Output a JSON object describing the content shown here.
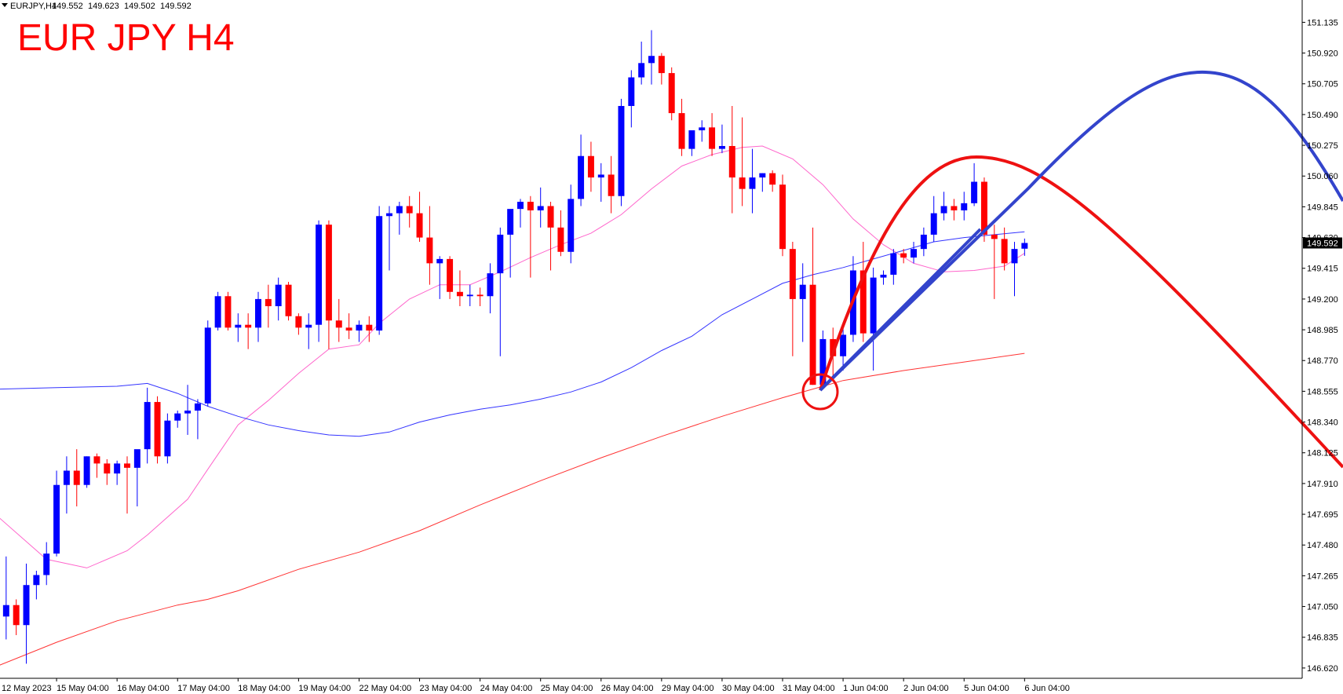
{
  "chart_data": {
    "type": "candlestick",
    "symbol": "EURJPY,H4",
    "title": "EUR JPY H4",
    "up_color": "#0000ff",
    "down_color": "#ff0000",
    "xlim": [
      0.39,
      129.53
    ],
    "ylim": [
      146.548,
      151.291
    ],
    "xticks": [
      {
        "value": 0,
        "label": "12 May 2023"
      },
      {
        "value": 6,
        "label": "15 May 04:00"
      },
      {
        "value": 12,
        "label": "16 May 04:00"
      },
      {
        "value": 18,
        "label": "17 May 04:00"
      },
      {
        "value": 24,
        "label": "18 May 04:00"
      },
      {
        "value": 30,
        "label": "19 May 04:00"
      },
      {
        "value": 36,
        "label": "22 May 04:00"
      },
      {
        "value": 42,
        "label": "23 May 04:00"
      },
      {
        "value": 48,
        "label": "24 May 04:00"
      },
      {
        "value": 54,
        "label": "25 May 04:00"
      },
      {
        "value": 60,
        "label": "26 May 04:00"
      },
      {
        "value": 66,
        "label": "29 May 04:00"
      },
      {
        "value": 72,
        "label": "30 May 04:00"
      },
      {
        "value": 78,
        "label": "31 May 04:00"
      },
      {
        "value": 84,
        "label": "1 Jun 04:00"
      },
      {
        "value": 90,
        "label": "2 Jun 04:00"
      },
      {
        "value": 96,
        "label": "5 Jun 04:00"
      },
      {
        "value": 102,
        "label": "6 Jun 04:00"
      }
    ],
    "yticks": [
      {
        "value": 151.135,
        "label": "151.135"
      },
      {
        "value": 150.92,
        "label": "150.920"
      },
      {
        "value": 150.705,
        "label": "150.705"
      },
      {
        "value": 150.49,
        "label": "150.490"
      },
      {
        "value": 150.275,
        "label": "150.275"
      },
      {
        "value": 150.06,
        "label": "150.060"
      },
      {
        "value": 149.845,
        "label": "149.845"
      },
      {
        "value": 149.63,
        "label": "149.630"
      },
      {
        "value": 149.415,
        "label": "149.415"
      },
      {
        "value": 149.2,
        "label": "149.200"
      },
      {
        "value": 148.985,
        "label": "148.985"
      },
      {
        "value": 148.77,
        "label": "148.770"
      },
      {
        "value": 148.555,
        "label": "148.555"
      },
      {
        "value": 148.34,
        "label": "148.340"
      },
      {
        "value": 148.125,
        "label": "148.125"
      },
      {
        "value": 147.91,
        "label": "147.910"
      },
      {
        "value": 147.695,
        "label": "147.695"
      },
      {
        "value": 147.48,
        "label": "147.480"
      },
      {
        "value": 147.265,
        "label": "147.265"
      },
      {
        "value": 147.05,
        "label": "147.050"
      },
      {
        "value": 146.835,
        "label": "146.835"
      },
      {
        "value": 146.62,
        "label": "146.620"
      }
    ],
    "candles": {
      "x": [
        1,
        2,
        3,
        4,
        5,
        6,
        7,
        8,
        9,
        10,
        11,
        12,
        13,
        14,
        15,
        16,
        17,
        18,
        19,
        20,
        21,
        22,
        23,
        24,
        25,
        26,
        27,
        28,
        29,
        30,
        31,
        32,
        33,
        34,
        35,
        36,
        37,
        38,
        39,
        40,
        41,
        42,
        43,
        44,
        45,
        46,
        47,
        48,
        49,
        50,
        51,
        52,
        53,
        54,
        55,
        56,
        57,
        58,
        59,
        60,
        61,
        62,
        63,
        64,
        65,
        66,
        67,
        68,
        69,
        70,
        71,
        72,
        73,
        74,
        75,
        76,
        77,
        78,
        79,
        80,
        81,
        82,
        83,
        84,
        85,
        86,
        87,
        88,
        89,
        90,
        91,
        92,
        93,
        94,
        95,
        96,
        97,
        98,
        99,
        100,
        101,
        102
      ],
      "open": [
        146.98,
        147.06,
        146.92,
        147.2,
        147.27,
        147.42,
        147.9,
        148.0,
        147.9,
        148.1,
        148.05,
        147.98,
        148.05,
        148.02,
        148.15,
        148.48,
        148.1,
        148.35,
        148.4,
        148.42,
        148.47,
        149.0,
        149.22,
        149.0,
        149.02,
        149.0,
        149.2,
        149.15,
        149.3,
        149.08,
        149.0,
        149.02,
        149.72,
        149.05,
        149.0,
        148.98,
        149.02,
        148.98,
        149.78,
        149.8,
        149.85,
        149.8,
        149.63,
        149.45,
        149.48,
        149.25,
        149.22,
        149.23,
        149.22,
        149.38,
        149.65,
        149.83,
        149.88,
        149.82,
        149.85,
        149.7,
        149.53,
        149.9,
        150.2,
        150.05,
        150.07,
        149.92,
        150.55,
        150.75,
        150.85,
        150.9,
        150.78,
        150.5,
        150.25,
        150.38,
        150.4,
        150.25,
        150.27,
        150.05,
        149.97,
        150.05,
        150.08,
        150.0,
        149.55,
        149.2,
        149.3,
        148.6,
        148.92,
        148.8,
        148.95,
        149.4,
        148.96,
        149.35,
        149.37,
        149.52,
        149.49,
        149.55,
        149.65,
        149.8,
        149.85,
        149.82,
        149.87,
        150.02,
        149.65,
        149.62,
        149.45,
        149.552
      ],
      "high": [
        147.4,
        147.1,
        147.35,
        147.3,
        147.5,
        148.0,
        148.1,
        148.15,
        148.1,
        148.12,
        148.08,
        148.07,
        148.1,
        148.1,
        148.58,
        148.52,
        148.4,
        148.42,
        148.6,
        148.5,
        149.05,
        149.25,
        149.25,
        149.1,
        149.1,
        149.25,
        149.3,
        149.35,
        149.32,
        149.1,
        149.1,
        149.75,
        149.75,
        149.2,
        149.1,
        149.05,
        149.08,
        149.85,
        149.85,
        149.88,
        149.92,
        149.95,
        149.85,
        149.5,
        149.5,
        149.4,
        149.3,
        149.28,
        149.45,
        149.7,
        149.8,
        149.9,
        149.92,
        149.98,
        149.88,
        149.82,
        150.0,
        150.35,
        150.3,
        150.15,
        150.2,
        150.6,
        150.8,
        151.0,
        151.08,
        150.92,
        150.82,
        150.6,
        150.35,
        150.45,
        150.5,
        150.42,
        150.55,
        150.47,
        150.25,
        150.08,
        150.1,
        150.07,
        149.6,
        149.45,
        149.7,
        148.98,
        149.0,
        149.0,
        149.5,
        149.6,
        149.42,
        149.4,
        149.55,
        149.55,
        149.6,
        149.7,
        149.92,
        149.95,
        149.9,
        149.95,
        150.15,
        150.05,
        149.72,
        149.7,
        149.6,
        149.623
      ],
      "low": [
        146.82,
        146.85,
        146.65,
        147.1,
        147.2,
        147.4,
        147.7,
        147.75,
        147.88,
        147.95,
        147.9,
        147.9,
        147.7,
        147.75,
        148.05,
        148.05,
        148.05,
        148.3,
        148.25,
        148.22,
        148.45,
        148.98,
        148.98,
        148.9,
        148.85,
        148.9,
        149.0,
        149.05,
        149.05,
        148.95,
        148.85,
        148.9,
        148.85,
        148.9,
        148.92,
        148.9,
        148.9,
        148.95,
        149.4,
        149.65,
        149.7,
        149.6,
        149.3,
        149.2,
        149.2,
        149.15,
        149.15,
        149.15,
        149.1,
        148.8,
        149.35,
        149.7,
        149.35,
        149.7,
        149.4,
        149.5,
        149.45,
        149.85,
        149.95,
        149.88,
        149.8,
        149.85,
        150.4,
        150.7,
        150.7,
        150.7,
        150.45,
        150.2,
        150.2,
        150.3,
        150.2,
        150.22,
        149.8,
        149.85,
        149.8,
        149.95,
        149.95,
        149.5,
        148.8,
        148.9,
        148.6,
        148.58,
        148.65,
        148.7,
        148.9,
        148.9,
        148.7,
        149.3,
        149.3,
        149.45,
        149.45,
        149.5,
        149.6,
        149.75,
        149.75,
        149.75,
        149.85,
        149.6,
        149.2,
        149.4,
        149.22,
        149.502
      ],
      "close": [
        147.06,
        146.92,
        147.2,
        147.27,
        147.42,
        147.9,
        148.0,
        147.9,
        148.1,
        148.05,
        147.98,
        148.05,
        148.02,
        148.15,
        148.48,
        148.1,
        148.35,
        148.4,
        148.42,
        148.47,
        149.0,
        149.22,
        149.0,
        149.02,
        149.0,
        149.2,
        149.15,
        149.3,
        149.08,
        149.0,
        149.02,
        149.72,
        149.05,
        149.0,
        148.98,
        149.02,
        148.98,
        149.78,
        149.8,
        149.85,
        149.8,
        149.63,
        149.45,
        149.48,
        149.25,
        149.22,
        149.23,
        149.22,
        149.38,
        149.65,
        149.83,
        149.88,
        149.82,
        149.85,
        149.7,
        149.53,
        149.9,
        150.2,
        150.05,
        150.07,
        149.92,
        150.55,
        150.75,
        150.85,
        150.9,
        150.78,
        150.5,
        150.25,
        150.38,
        150.4,
        150.25,
        150.27,
        150.05,
        149.97,
        150.05,
        150.08,
        150.0,
        149.55,
        149.2,
        149.3,
        148.6,
        148.92,
        148.8,
        148.95,
        149.4,
        148.96,
        149.35,
        149.37,
        149.52,
        149.49,
        149.55,
        149.65,
        149.8,
        149.85,
        149.82,
        149.87,
        150.02,
        149.65,
        149.62,
        149.45,
        149.55,
        149.592
      ]
    },
    "series": [
      {
        "color": "#ff66cc",
        "x": [
          0,
          5,
          9,
          13,
          15,
          19,
          21,
          24,
          27,
          30,
          33,
          36,
          38,
          41,
          44,
          47,
          50,
          53,
          56,
          59,
          62,
          65,
          68,
          71,
          74,
          76,
          79,
          82,
          85,
          88,
          91,
          94,
          97,
          100,
          102
        ],
        "values": [
          147.69,
          147.38,
          147.32,
          147.44,
          147.55,
          147.8,
          148.01,
          148.32,
          148.49,
          148.68,
          148.85,
          148.88,
          149.03,
          149.2,
          149.3,
          149.3,
          149.39,
          149.49,
          149.58,
          149.66,
          149.79,
          149.97,
          150.13,
          150.21,
          150.26,
          150.27,
          150.18,
          150.0,
          149.76,
          149.58,
          149.45,
          149.39,
          149.4,
          149.43,
          149.52
        ]
      },
      {
        "color": "#3333ff",
        "x": [
          0,
          6,
          12,
          15,
          18,
          21,
          24,
          27,
          30,
          33,
          36,
          39,
          42,
          45,
          48,
          51,
          54,
          57,
          60,
          63,
          66,
          69,
          72,
          75,
          78,
          81,
          84,
          87,
          90,
          93,
          96,
          99,
          102
        ],
        "values": [
          148.57,
          148.58,
          148.59,
          148.61,
          148.54,
          148.45,
          148.38,
          148.32,
          148.28,
          148.25,
          148.24,
          148.27,
          148.34,
          148.39,
          148.43,
          148.46,
          148.5,
          148.55,
          148.62,
          148.72,
          148.84,
          148.94,
          149.09,
          149.2,
          149.31,
          149.37,
          149.42,
          149.48,
          149.54,
          149.6,
          149.63,
          149.65,
          149.67
        ]
      },
      {
        "color": "#ff3333",
        "x": [
          0,
          6,
          12,
          18,
          21,
          24,
          30,
          36,
          42,
          48,
          54,
          60,
          66,
          72,
          78,
          84,
          90,
          96,
          102
        ],
        "values": [
          146.63,
          146.8,
          146.95,
          147.06,
          147.1,
          147.16,
          147.31,
          147.43,
          147.58,
          147.76,
          147.93,
          148.09,
          148.24,
          148.38,
          148.51,
          148.63,
          148.7,
          148.76,
          148.82
        ]
      }
    ]
  }
}
